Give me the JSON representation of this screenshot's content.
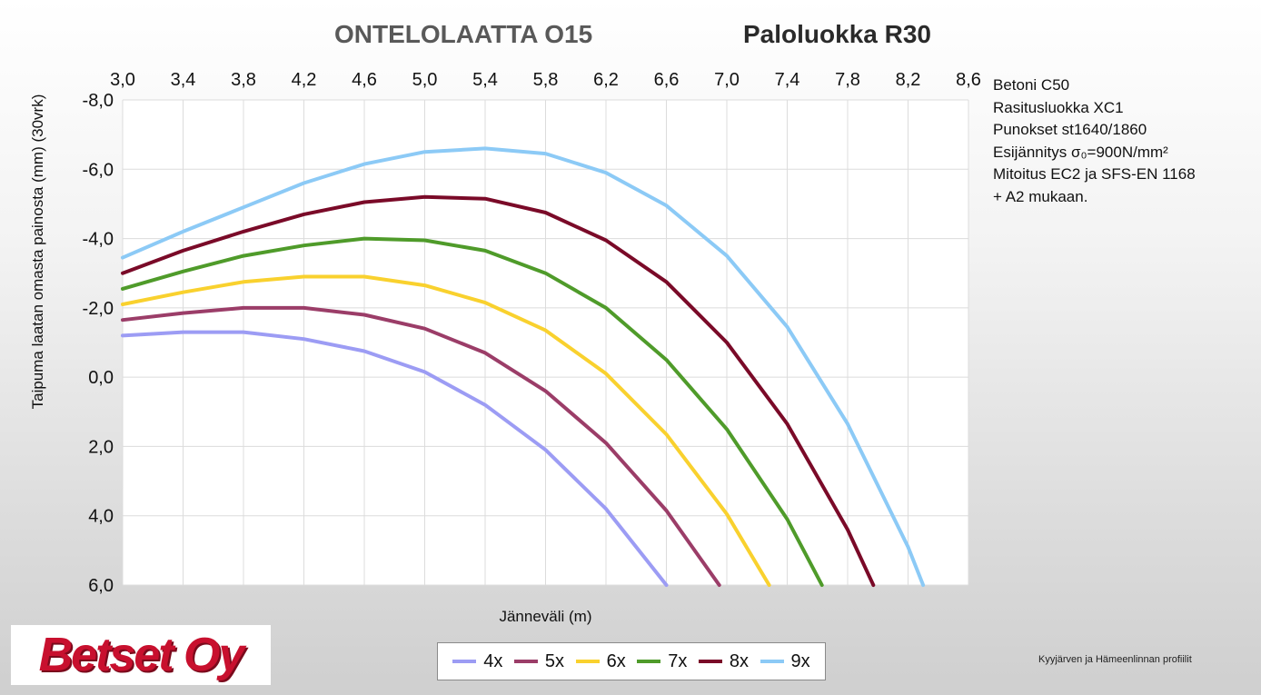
{
  "header": {
    "title_left": "ONTELOLAATTA O15",
    "title_right": "Paloluokka R30"
  },
  "info_lines": [
    "Betoni C50",
    "Rasitusluokka XC1",
    "Punokset st1640/1860",
    "Esijännitys σ₀=900N/mm²",
    "Mitoitus EC2 ja SFS-EN 1168",
    "+ A2 mukaan."
  ],
  "logo": {
    "text": "Betset Oy"
  },
  "footnote": "Kyyjärven ja Hämeenlinnan profiilit",
  "colors": {
    "4x": "#9c9cf4",
    "5x": "#9b3d68",
    "6x": "#f9d12e",
    "7x": "#4f9b2a",
    "8x": "#7a0a28",
    "9x": "#8ccaf6"
  },
  "chart_data": {
    "type": "line",
    "title": "",
    "xlabel": "Jänneväli (m)",
    "ylabel": "Taipuma laatan omasta painosta (mm)   (30vrk)",
    "xlim": [
      3.0,
      8.6
    ],
    "ylim": [
      6.0,
      -8.0
    ],
    "y_inverted": true,
    "x_ticks": [
      "3,0",
      "3,4",
      "3,8",
      "4,2",
      "4,6",
      "5,0",
      "5,4",
      "5,8",
      "6,2",
      "6,6",
      "7,0",
      "7,4",
      "7,8",
      "8,2",
      "8,6"
    ],
    "y_ticks": [
      "-8,0",
      "-6,0",
      "-4,0",
      "-2,0",
      "0,0",
      "2,0",
      "4,0",
      "6,0"
    ],
    "x_axis_position": "top",
    "grid": true,
    "legend_position": "bottom",
    "series": [
      {
        "name": "4x",
        "x": [
          3.0,
          3.4,
          3.8,
          4.2,
          4.6,
          5.0,
          5.4,
          5.8,
          6.2,
          6.6
        ],
        "y": [
          -1.2,
          -1.3,
          -1.3,
          -1.1,
          -0.75,
          -0.15,
          0.8,
          2.1,
          3.8,
          6.0
        ]
      },
      {
        "name": "5x",
        "x": [
          3.0,
          3.4,
          3.8,
          4.2,
          4.6,
          5.0,
          5.4,
          5.8,
          6.2,
          6.6,
          6.95
        ],
        "y": [
          -1.65,
          -1.85,
          -2.0,
          -2.0,
          -1.8,
          -1.4,
          -0.7,
          0.4,
          1.9,
          3.85,
          6.0
        ]
      },
      {
        "name": "6x",
        "x": [
          3.0,
          3.4,
          3.8,
          4.2,
          4.6,
          5.0,
          5.4,
          5.8,
          6.2,
          6.6,
          7.0,
          7.28
        ],
        "y": [
          -2.1,
          -2.45,
          -2.75,
          -2.9,
          -2.9,
          -2.65,
          -2.15,
          -1.35,
          -0.1,
          1.65,
          3.95,
          6.0
        ]
      },
      {
        "name": "7x",
        "x": [
          3.0,
          3.4,
          3.8,
          4.2,
          4.6,
          5.0,
          5.4,
          5.8,
          6.2,
          6.6,
          7.0,
          7.4,
          7.63
        ],
        "y": [
          -2.55,
          -3.05,
          -3.5,
          -3.8,
          -4.0,
          -3.95,
          -3.65,
          -3.0,
          -2.0,
          -0.5,
          1.5,
          4.1,
          6.0
        ]
      },
      {
        "name": "8x",
        "x": [
          3.0,
          3.4,
          3.8,
          4.2,
          4.6,
          5.0,
          5.4,
          5.8,
          6.2,
          6.6,
          7.0,
          7.4,
          7.8,
          7.97
        ],
        "y": [
          -3.0,
          -3.65,
          -4.2,
          -4.7,
          -5.05,
          -5.2,
          -5.15,
          -4.75,
          -3.95,
          -2.75,
          -1.0,
          1.35,
          4.4,
          6.0
        ]
      },
      {
        "name": "9x",
        "x": [
          3.0,
          3.4,
          3.8,
          4.2,
          4.6,
          5.0,
          5.4,
          5.8,
          6.2,
          6.6,
          7.0,
          7.4,
          7.8,
          8.2,
          8.3
        ],
        "y": [
          -3.45,
          -4.2,
          -4.9,
          -5.6,
          -6.15,
          -6.5,
          -6.6,
          -6.45,
          -5.9,
          -4.95,
          -3.5,
          -1.45,
          1.35,
          4.9,
          6.0
        ]
      }
    ]
  }
}
